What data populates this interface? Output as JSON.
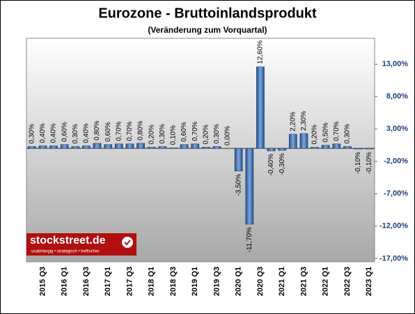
{
  "chart_data": {
    "type": "bar",
    "title": "Eurozone - Bruttoinlandsprodukt",
    "subtitle": "(Veränderung zum Vorquartal)",
    "categories": [
      null,
      "2015 Q3",
      null,
      "2016 Q1",
      null,
      "2016 Q3",
      null,
      "2017 Q1",
      null,
      "2017 Q3",
      null,
      "2018 Q1",
      null,
      "2018 Q3",
      null,
      "2019 Q1",
      null,
      "2019 Q3",
      null,
      "2020 Q1",
      null,
      "2020 Q3",
      null,
      "2021 Q1",
      null,
      "2021 Q3",
      null,
      "2022 Q1",
      null,
      "2022 Q3",
      null,
      "2023 Q1"
    ],
    "values": [
      0.3,
      0.4,
      0.4,
      0.6,
      0.3,
      0.4,
      0.8,
      0.6,
      0.7,
      0.7,
      0.8,
      0.2,
      0.3,
      0.1,
      0.6,
      0.7,
      0.2,
      0.3,
      0.0,
      -3.5,
      -11.7,
      12.6,
      -0.4,
      -0.3,
      2.2,
      2.3,
      0.2,
      0.5,
      0.7,
      0.3,
      -0.1,
      -0.1
    ],
    "value_labels": [
      "0,30%",
      "0,40%",
      "0,40%",
      "0,60%",
      "0,30%",
      "0,40%",
      "0,80%",
      "0,60%",
      "0,70%",
      "0,70%",
      "0,80%",
      "0,20%",
      "0,30%",
      "0,10%",
      "0,60%",
      "0,70%",
      "0,20%",
      "0,30%",
      "0,00%",
      "-3,50%",
      "-11,70%",
      "12,60%",
      "-0,40%",
      "-0,30%",
      "2,20%",
      "2,30%",
      "0,20%",
      "0,50%",
      "0,70%",
      "0,30%",
      "-0,10%",
      "-0,10%"
    ],
    "color": "#2e5fa3",
    "ylim": [
      -17.5,
      17
    ],
    "yticks": [
      {
        "value": 13,
        "label": "13,00%"
      },
      {
        "value": 8,
        "label": "8,00%"
      },
      {
        "value": 3,
        "label": "3,00%"
      },
      {
        "value": -2,
        "label": "-2,00%"
      },
      {
        "value": -7,
        "label": "-7,00%"
      },
      {
        "value": -12,
        "label": "-12,00%"
      },
      {
        "value": -17,
        "label": "-17,00%"
      }
    ],
    "grid": false
  },
  "logo": {
    "name": "stockstreet.de",
    "tagline": "unabhängig • strategisch • treffsicher"
  }
}
